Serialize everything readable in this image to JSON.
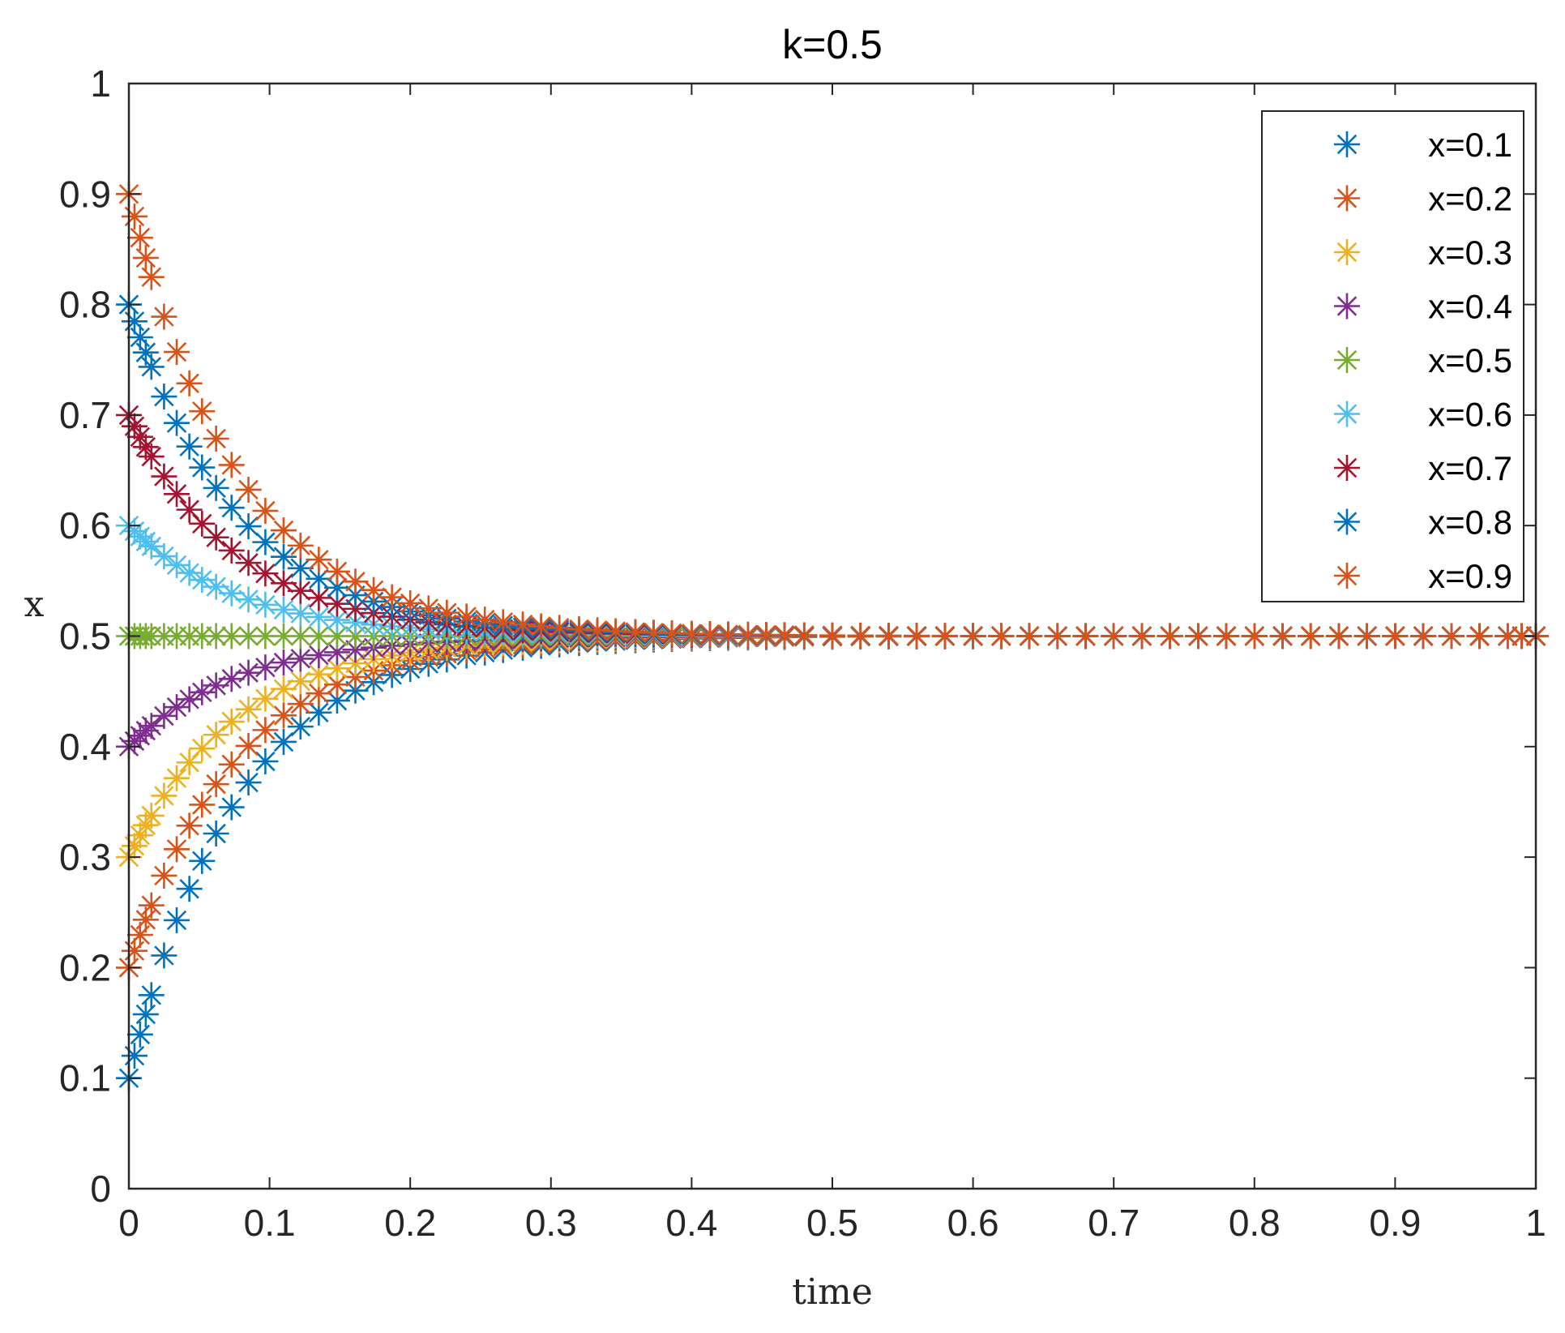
{
  "chart_data": {
    "type": "scatter",
    "title": "k=0.5",
    "xlabel": "time",
    "ylabel": "x",
    "xlim": [
      0,
      1
    ],
    "ylim": [
      0,
      1
    ],
    "xticks": [
      0,
      0.1,
      0.2,
      0.3,
      0.4,
      0.5,
      0.6,
      0.7,
      0.8,
      0.9,
      1
    ],
    "xtick_labels": [
      "0",
      "0.1",
      "0.2",
      "0.3",
      "0.4",
      "0.5",
      "0.6",
      "0.7",
      "0.8",
      "0.9",
      "1"
    ],
    "yticks": [
      0,
      0.1,
      0.2,
      0.3,
      0.4,
      0.5,
      0.6,
      0.7,
      0.8,
      0.9,
      1
    ],
    "ytick_labels": [
      "0",
      "0.1",
      "0.2",
      "0.3",
      "0.4",
      "0.5",
      "0.6",
      "0.7",
      "0.8",
      "0.9",
      "1"
    ],
    "grid": false,
    "legend_position": "top-right",
    "marker": "asterisk",
    "time_points": [
      0,
      0.004,
      0.008,
      0.012,
      0.016,
      0.025,
      0.034,
      0.043,
      0.052,
      0.062,
      0.073,
      0.085,
      0.097,
      0.11,
      0.122,
      0.135,
      0.148,
      0.161,
      0.174,
      0.187,
      0.2,
      0.213,
      0.226,
      0.24,
      0.253,
      0.266,
      0.28,
      0.293,
      0.306,
      0.32,
      0.333,
      0.346,
      0.36,
      0.373,
      0.386,
      0.4,
      0.413,
      0.426,
      0.44,
      0.453,
      0.466,
      0.48,
      0.5,
      0.52,
      0.54,
      0.56,
      0.58,
      0.6,
      0.62,
      0.64,
      0.66,
      0.68,
      0.7,
      0.72,
      0.74,
      0.76,
      0.78,
      0.8,
      0.82,
      0.84,
      0.86,
      0.88,
      0.9,
      0.92,
      0.94,
      0.96,
      0.98,
      0.99,
      1.0
    ],
    "series": [
      {
        "name": "x=0.1",
        "initial": 0.1,
        "color": "#0072BD"
      },
      {
        "name": "x=0.2",
        "initial": 0.2,
        "color": "#D95319"
      },
      {
        "name": "x=0.3",
        "initial": 0.3,
        "color": "#EDB120"
      },
      {
        "name": "x=0.4",
        "initial": 0.4,
        "color": "#7E2F8E"
      },
      {
        "name": "x=0.5",
        "initial": 0.5,
        "color": "#77AC30"
      },
      {
        "name": "x=0.6",
        "initial": 0.6,
        "color": "#4DBEEE"
      },
      {
        "name": "x=0.7",
        "initial": 0.7,
        "color": "#A2142F"
      },
      {
        "name": "x=0.8",
        "initial": 0.8,
        "color": "#0072BD"
      },
      {
        "name": "x=0.9",
        "initial": 0.9,
        "color": "#D95319"
      }
    ],
    "converges_to": 0.5,
    "decay_rate": 13
  }
}
